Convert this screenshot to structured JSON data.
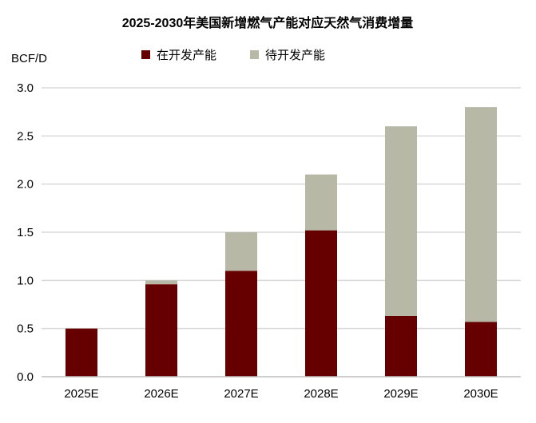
{
  "chart_data": {
    "type": "bar",
    "stacked": true,
    "title": "2025-2030年美国新增燃气产能对应天然气消费增量",
    "ylabel": "BCF/D",
    "xlabel": "",
    "ylim": [
      0,
      3.0
    ],
    "yticks": [
      "0.0",
      "0.5",
      "1.0",
      "1.5",
      "2.0",
      "2.5",
      "3.0"
    ],
    "grid": true,
    "legend_position": "top",
    "categories": [
      "2025E",
      "2026E",
      "2027E",
      "2028E",
      "2029E",
      "2030E"
    ],
    "series": [
      {
        "name": "在开发产能",
        "color": "#660000",
        "values": [
          0.5,
          0.96,
          1.1,
          1.52,
          0.63,
          0.57
        ]
      },
      {
        "name": "待开发产能",
        "color": "#b7b8a6",
        "values": [
          0.0,
          0.04,
          0.4,
          0.58,
          1.97,
          2.23
        ]
      }
    ]
  }
}
